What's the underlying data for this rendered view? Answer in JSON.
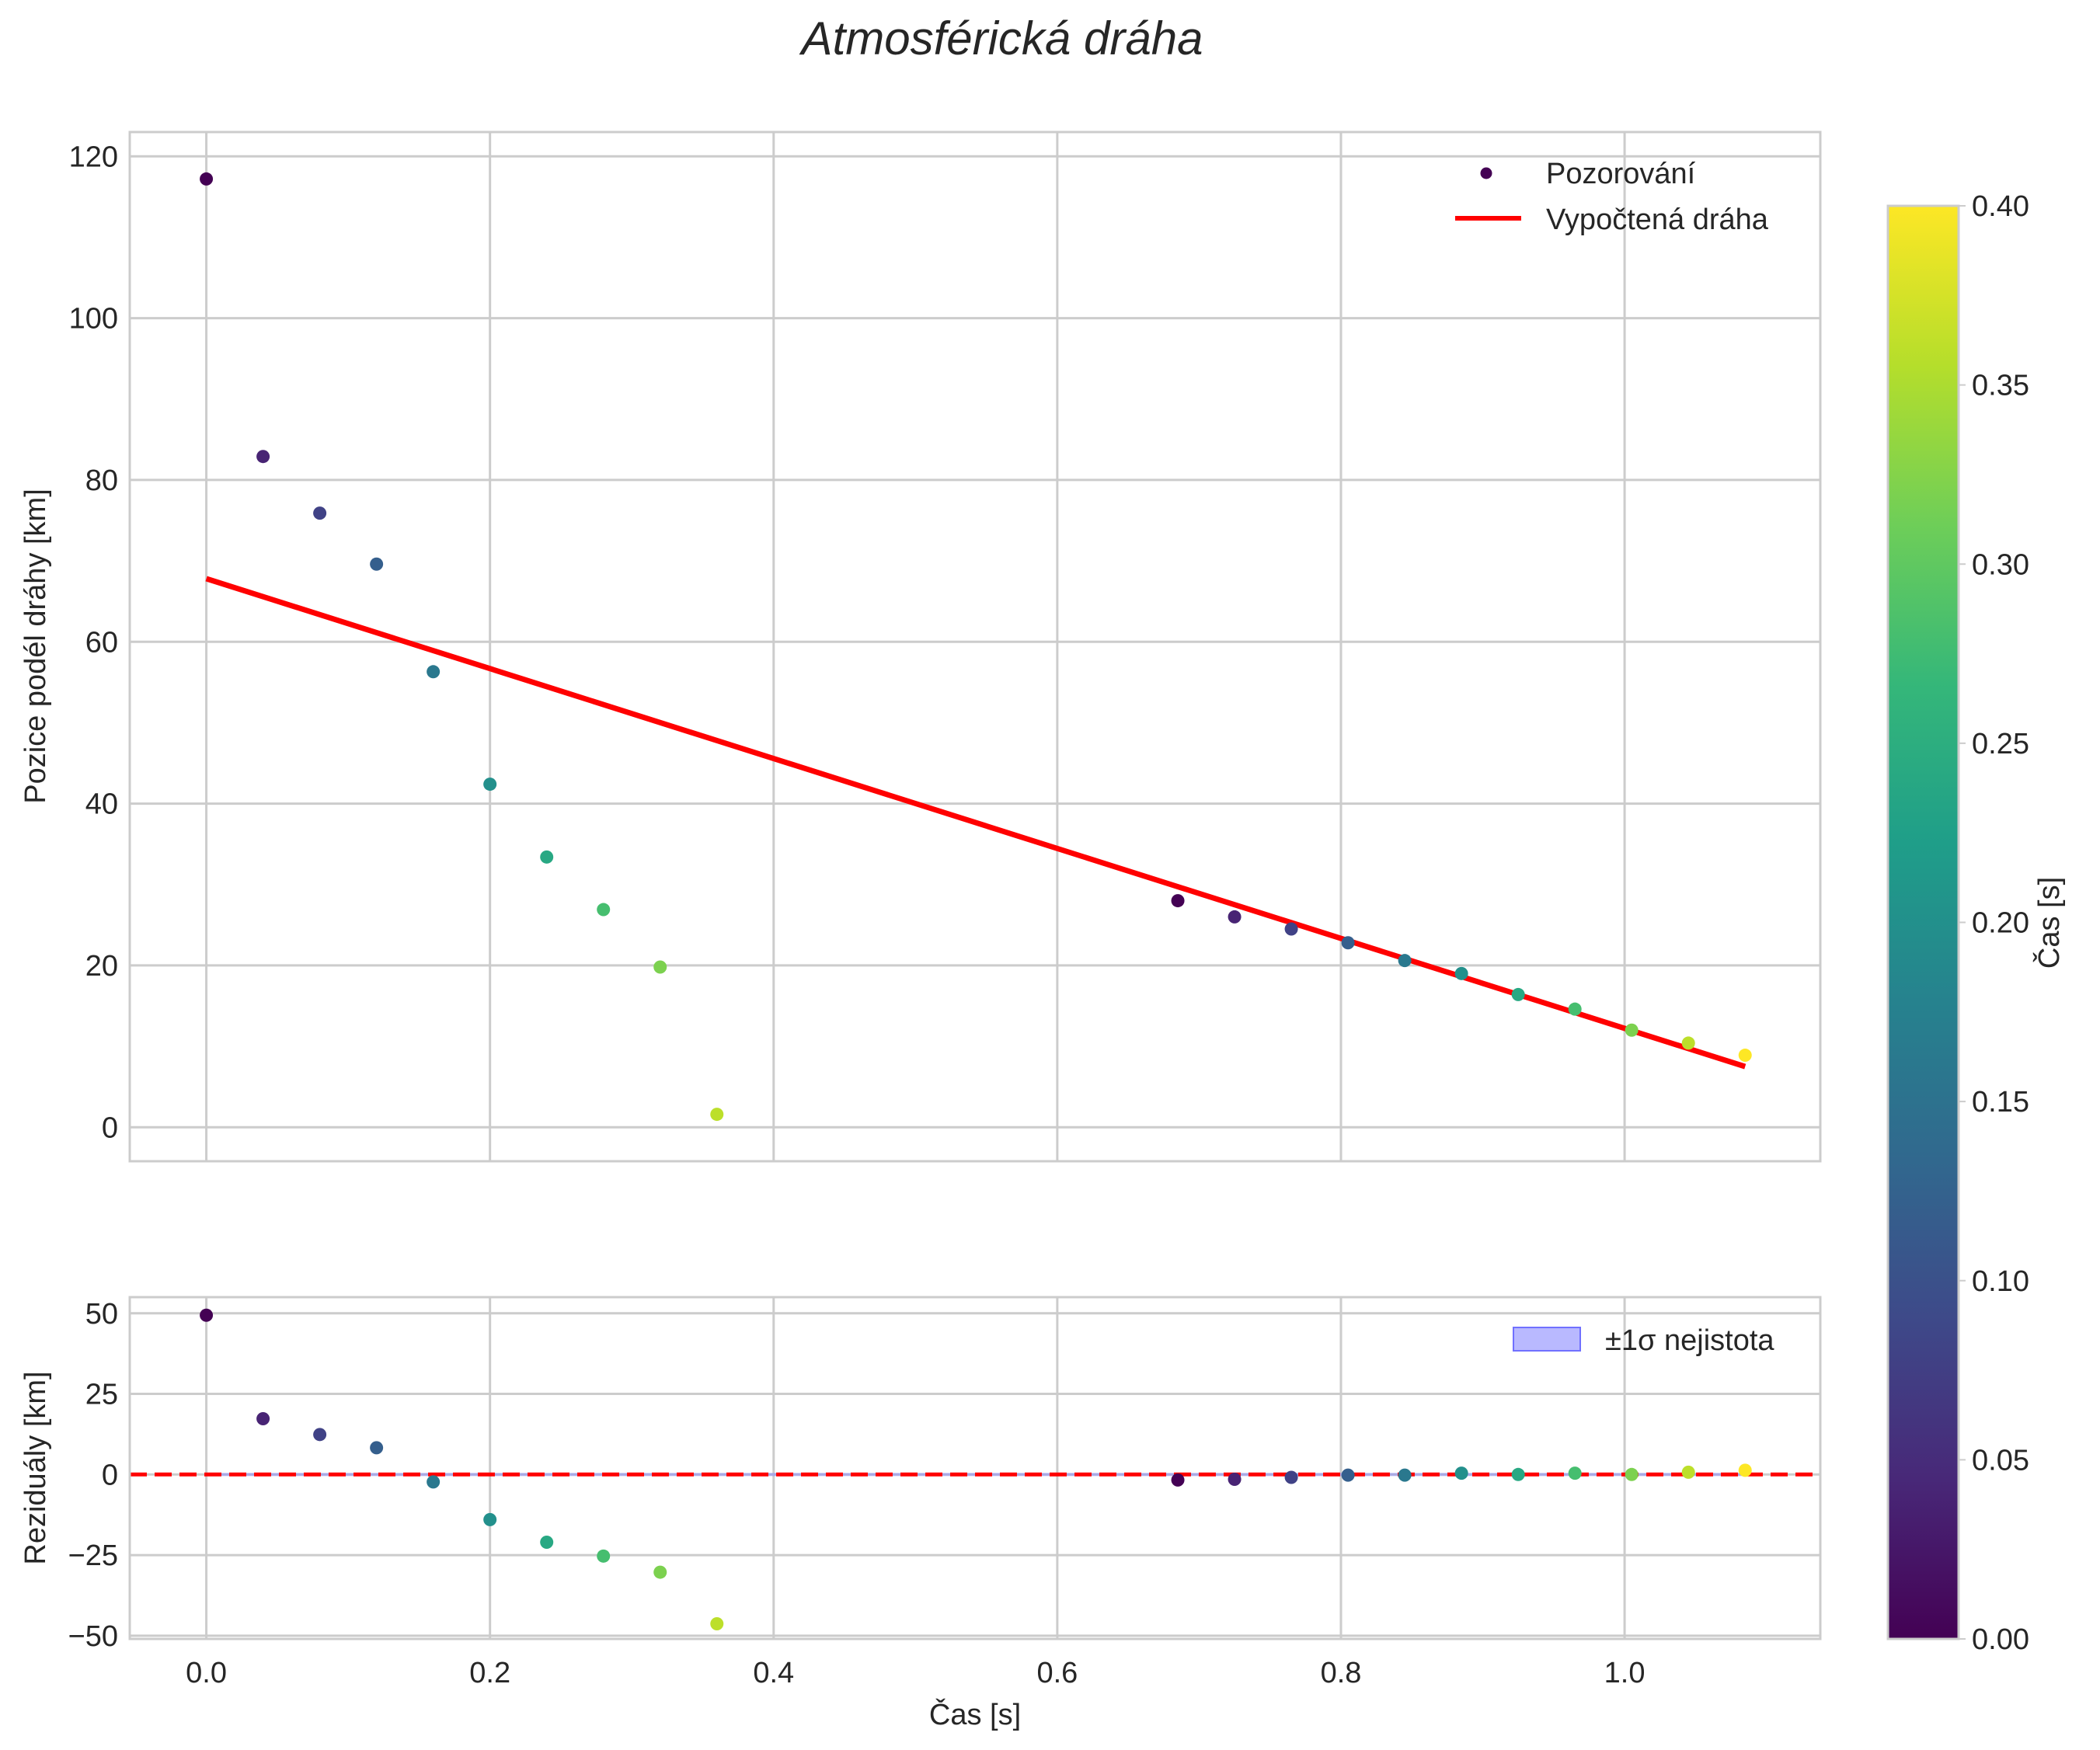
{
  "chart_data": {
    "type": "scatter",
    "title": "Atmosférická dráha",
    "xlabel": "Čas [s]",
    "xlim": [
      -0.054,
      1.138
    ],
    "xticks": [
      0.0,
      0.2,
      0.4,
      0.6,
      0.8,
      1.0
    ],
    "xtick_labels": [
      "0.0",
      "0.2",
      "0.4",
      "0.6",
      "0.8",
      "1.0"
    ],
    "colorbar": {
      "label": "Čas [s]",
      "colormap": "viridis",
      "range": [
        0.0,
        0.4
      ],
      "ticks": [
        0.0,
        0.05,
        0.1,
        0.15,
        0.2,
        0.25,
        0.3,
        0.35,
        0.4
      ],
      "tick_labels": [
        "0.00",
        "0.05",
        "0.10",
        "0.15",
        "0.20",
        "0.25",
        "0.30",
        "0.35",
        "0.40"
      ],
      "stops": [
        "#440154",
        "#482878",
        "#3e4989",
        "#31688e",
        "#26828e",
        "#1f9e89",
        "#35b779",
        "#6ece58",
        "#b5de2b",
        "#fde725"
      ]
    },
    "top_panel": {
      "ylabel": "Pozice podél dráhy [km]",
      "ylim": [
        -4.2,
        123
      ],
      "yticks": [
        0,
        20,
        40,
        60,
        80,
        100,
        120
      ],
      "ytick_labels": [
        "0",
        "20",
        "40",
        "60",
        "80",
        "100",
        "120"
      ],
      "legend": {
        "position": "top-right",
        "entries": [
          "Pozorování",
          "Vypočtená dráha"
        ]
      },
      "fit_line": {
        "name": "Vypočtená dráha",
        "color": "#ff0000",
        "x": [
          0.0,
          1.085
        ],
        "y": [
          67.8,
          7.5
        ]
      },
      "observations": [
        {
          "x": 0.0,
          "y": 117.2,
          "c": 0.0
        },
        {
          "x": 0.04,
          "y": 82.9,
          "c": 0.04
        },
        {
          "x": 0.08,
          "y": 75.9,
          "c": 0.08
        },
        {
          "x": 0.12,
          "y": 69.6,
          "c": 0.12
        },
        {
          "x": 0.16,
          "y": 56.3,
          "c": 0.16
        },
        {
          "x": 0.2,
          "y": 42.4,
          "c": 0.2
        },
        {
          "x": 0.24,
          "y": 33.4,
          "c": 0.24
        },
        {
          "x": 0.28,
          "y": 26.9,
          "c": 0.28
        },
        {
          "x": 0.32,
          "y": 19.8,
          "c": 0.32
        },
        {
          "x": 0.36,
          "y": 1.6,
          "c": 0.36
        },
        {
          "x": 0.685,
          "y": 28.0,
          "c": 0.0
        },
        {
          "x": 0.725,
          "y": 26.0,
          "c": 0.04
        },
        {
          "x": 0.765,
          "y": 24.5,
          "c": 0.08
        },
        {
          "x": 0.805,
          "y": 22.8,
          "c": 0.12
        },
        {
          "x": 0.845,
          "y": 20.6,
          "c": 0.16
        },
        {
          "x": 0.885,
          "y": 19.0,
          "c": 0.2
        },
        {
          "x": 0.925,
          "y": 16.4,
          "c": 0.24
        },
        {
          "x": 0.965,
          "y": 14.6,
          "c": 0.28
        },
        {
          "x": 1.005,
          "y": 12.0,
          "c": 0.32
        },
        {
          "x": 1.045,
          "y": 10.4,
          "c": 0.36
        },
        {
          "x": 1.085,
          "y": 8.9,
          "c": 0.4
        }
      ]
    },
    "bottom_panel": {
      "ylabel": "Reziduály [km]",
      "ylim": [
        -51,
        55
      ],
      "yticks": [
        -50,
        -25,
        0,
        25,
        50
      ],
      "ytick_labels": [
        "−50",
        "−25",
        "0",
        "25",
        "50"
      ],
      "legend": {
        "position": "top-right",
        "entries": [
          "±1σ nejistota"
        ]
      },
      "zero_line": {
        "y": 0,
        "color": "#ff0000",
        "style": "dashed"
      },
      "uncertainty_band": {
        "lower": -0.5,
        "upper": 0.5,
        "color": "#8080ff"
      },
      "residuals": [
        {
          "x": 0.0,
          "y": 49.4,
          "c": 0.0
        },
        {
          "x": 0.04,
          "y": 17.3,
          "c": 0.04
        },
        {
          "x": 0.08,
          "y": 12.4,
          "c": 0.08
        },
        {
          "x": 0.12,
          "y": 8.3,
          "c": 0.12
        },
        {
          "x": 0.16,
          "y": -2.3,
          "c": 0.16
        },
        {
          "x": 0.2,
          "y": -14.0,
          "c": 0.2
        },
        {
          "x": 0.24,
          "y": -21.0,
          "c": 0.24
        },
        {
          "x": 0.28,
          "y": -25.3,
          "c": 0.28
        },
        {
          "x": 0.32,
          "y": -30.3,
          "c": 0.32
        },
        {
          "x": 0.36,
          "y": -46.3,
          "c": 0.36
        },
        {
          "x": 0.685,
          "y": -1.7,
          "c": 0.0
        },
        {
          "x": 0.725,
          "y": -1.5,
          "c": 0.04
        },
        {
          "x": 0.765,
          "y": -0.9,
          "c": 0.08
        },
        {
          "x": 0.805,
          "y": -0.2,
          "c": 0.12
        },
        {
          "x": 0.845,
          "y": -0.2,
          "c": 0.16
        },
        {
          "x": 0.885,
          "y": 0.4,
          "c": 0.2
        },
        {
          "x": 0.925,
          "y": 0.0,
          "c": 0.24
        },
        {
          "x": 0.965,
          "y": 0.4,
          "c": 0.28
        },
        {
          "x": 1.005,
          "y": 0.0,
          "c": 0.32
        },
        {
          "x": 1.045,
          "y": 0.7,
          "c": 0.36
        },
        {
          "x": 1.085,
          "y": 1.3,
          "c": 0.4
        }
      ]
    }
  }
}
